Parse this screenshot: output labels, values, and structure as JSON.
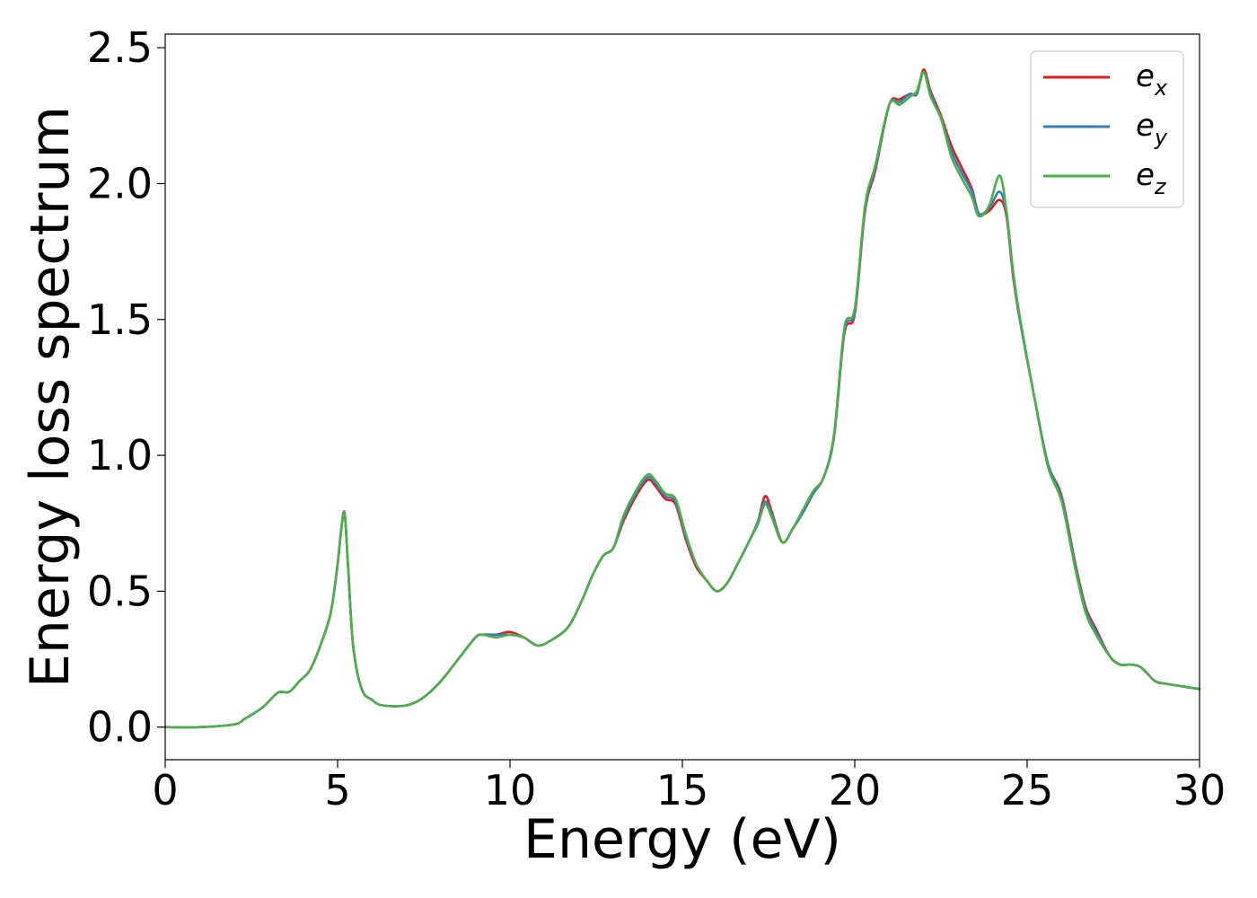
{
  "chart_data": {
    "type": "line",
    "title": "",
    "xlabel": "Energy (eV)",
    "ylabel": "Energy loss spectrum",
    "xlim": [
      0,
      30
    ],
    "ylim": [
      -0.12,
      2.55
    ],
    "xticks": [
      0,
      5,
      10,
      15,
      20,
      25,
      30
    ],
    "xtick_labels": [
      "0",
      "5",
      "10",
      "15",
      "20",
      "25",
      "30"
    ],
    "yticks": [
      0.0,
      0.5,
      1.0,
      1.5,
      2.0,
      2.5
    ],
    "ytick_labels": [
      "0.0",
      "0.5",
      "1.0",
      "1.5",
      "2.0",
      "2.5"
    ],
    "grid": false,
    "legend_position": "top-right",
    "x": [
      0,
      1.0,
      2.0,
      2.3,
      2.8,
      3.2,
      3.35,
      3.6,
      3.9,
      4.2,
      4.5,
      4.8,
      5.0,
      5.1,
      5.2,
      5.3,
      5.45,
      5.7,
      6.0,
      6.3,
      7.0,
      7.5,
      8.0,
      8.5,
      9.0,
      9.2,
      9.6,
      10.0,
      10.4,
      10.8,
      11.2,
      11.7,
      12.1,
      12.4,
      12.7,
      13.0,
      13.3,
      13.7,
      14.0,
      14.2,
      14.5,
      14.8,
      15.1,
      15.4,
      15.7,
      16.0,
      16.3,
      16.6,
      17.0,
      17.2,
      17.4,
      17.6,
      17.9,
      18.2,
      18.5,
      18.8,
      19.1,
      19.4,
      19.7,
      20.0,
      20.3,
      20.6,
      21.0,
      21.3,
      21.6,
      21.8,
      22.0,
      22.2,
      22.5,
      22.8,
      23.1,
      23.4,
      23.6,
      23.9,
      24.2,
      24.4,
      24.6,
      24.8,
      25.2,
      25.6,
      26.0,
      26.4,
      26.7,
      27.0,
      27.4,
      27.7,
      28.0,
      28.3,
      28.7,
      29.0,
      29.5,
      30.0
    ],
    "series": [
      {
        "name": "e_x",
        "color": "#e41a1c",
        "values": [
          0.0,
          0.0,
          0.01,
          0.03,
          0.07,
          0.12,
          0.13,
          0.13,
          0.17,
          0.21,
          0.3,
          0.42,
          0.6,
          0.72,
          0.79,
          0.6,
          0.3,
          0.14,
          0.1,
          0.08,
          0.08,
          0.11,
          0.17,
          0.25,
          0.33,
          0.34,
          0.34,
          0.35,
          0.33,
          0.3,
          0.32,
          0.37,
          0.47,
          0.56,
          0.63,
          0.66,
          0.76,
          0.86,
          0.91,
          0.89,
          0.84,
          0.82,
          0.69,
          0.59,
          0.54,
          0.5,
          0.53,
          0.6,
          0.7,
          0.76,
          0.85,
          0.79,
          0.68,
          0.73,
          0.79,
          0.86,
          0.92,
          1.07,
          1.45,
          1.52,
          1.9,
          2.05,
          2.29,
          2.31,
          2.33,
          2.33,
          2.42,
          2.34,
          2.25,
          2.14,
          2.06,
          1.98,
          1.89,
          1.9,
          1.94,
          1.88,
          1.65,
          1.49,
          1.22,
          0.97,
          0.85,
          0.6,
          0.44,
          0.36,
          0.26,
          0.23,
          0.23,
          0.22,
          0.17,
          0.16,
          0.15,
          0.14
        ]
      },
      {
        "name": "e_y",
        "color": "#377eb8",
        "values": [
          0.0,
          0.0,
          0.01,
          0.03,
          0.07,
          0.12,
          0.13,
          0.13,
          0.17,
          0.21,
          0.3,
          0.42,
          0.6,
          0.72,
          0.79,
          0.6,
          0.3,
          0.14,
          0.1,
          0.08,
          0.08,
          0.11,
          0.17,
          0.25,
          0.33,
          0.34,
          0.34,
          0.34,
          0.33,
          0.3,
          0.32,
          0.37,
          0.47,
          0.56,
          0.63,
          0.66,
          0.77,
          0.87,
          0.92,
          0.9,
          0.85,
          0.83,
          0.7,
          0.6,
          0.54,
          0.5,
          0.53,
          0.6,
          0.7,
          0.76,
          0.83,
          0.78,
          0.68,
          0.73,
          0.79,
          0.86,
          0.92,
          1.07,
          1.46,
          1.53,
          1.91,
          2.06,
          2.29,
          2.3,
          2.33,
          2.33,
          2.41,
          2.33,
          2.24,
          2.12,
          2.04,
          1.97,
          1.89,
          1.91,
          1.97,
          1.89,
          1.66,
          1.49,
          1.22,
          0.97,
          0.84,
          0.59,
          0.43,
          0.35,
          0.26,
          0.23,
          0.23,
          0.22,
          0.17,
          0.16,
          0.15,
          0.14
        ]
      },
      {
        "name": "e_z",
        "color": "#4daf4a",
        "values": [
          0.0,
          0.0,
          0.01,
          0.03,
          0.07,
          0.12,
          0.13,
          0.13,
          0.17,
          0.21,
          0.3,
          0.42,
          0.6,
          0.72,
          0.79,
          0.6,
          0.3,
          0.14,
          0.1,
          0.08,
          0.08,
          0.11,
          0.17,
          0.25,
          0.33,
          0.34,
          0.33,
          0.34,
          0.33,
          0.3,
          0.32,
          0.37,
          0.47,
          0.56,
          0.63,
          0.66,
          0.78,
          0.88,
          0.93,
          0.91,
          0.86,
          0.84,
          0.71,
          0.6,
          0.54,
          0.5,
          0.53,
          0.6,
          0.7,
          0.75,
          0.82,
          0.77,
          0.68,
          0.73,
          0.8,
          0.87,
          0.92,
          1.08,
          1.47,
          1.54,
          1.92,
          2.07,
          2.29,
          2.29,
          2.32,
          2.34,
          2.41,
          2.32,
          2.24,
          2.1,
          2.02,
          1.95,
          1.88,
          1.92,
          2.03,
          1.9,
          1.67,
          1.5,
          1.22,
          0.96,
          0.83,
          0.58,
          0.42,
          0.34,
          0.26,
          0.23,
          0.23,
          0.22,
          0.17,
          0.16,
          0.15,
          0.14
        ]
      }
    ]
  },
  "legend": {
    "entries": [
      {
        "base": "e",
        "sub": "x"
      },
      {
        "base": "e",
        "sub": "y"
      },
      {
        "base": "e",
        "sub": "z"
      }
    ]
  }
}
